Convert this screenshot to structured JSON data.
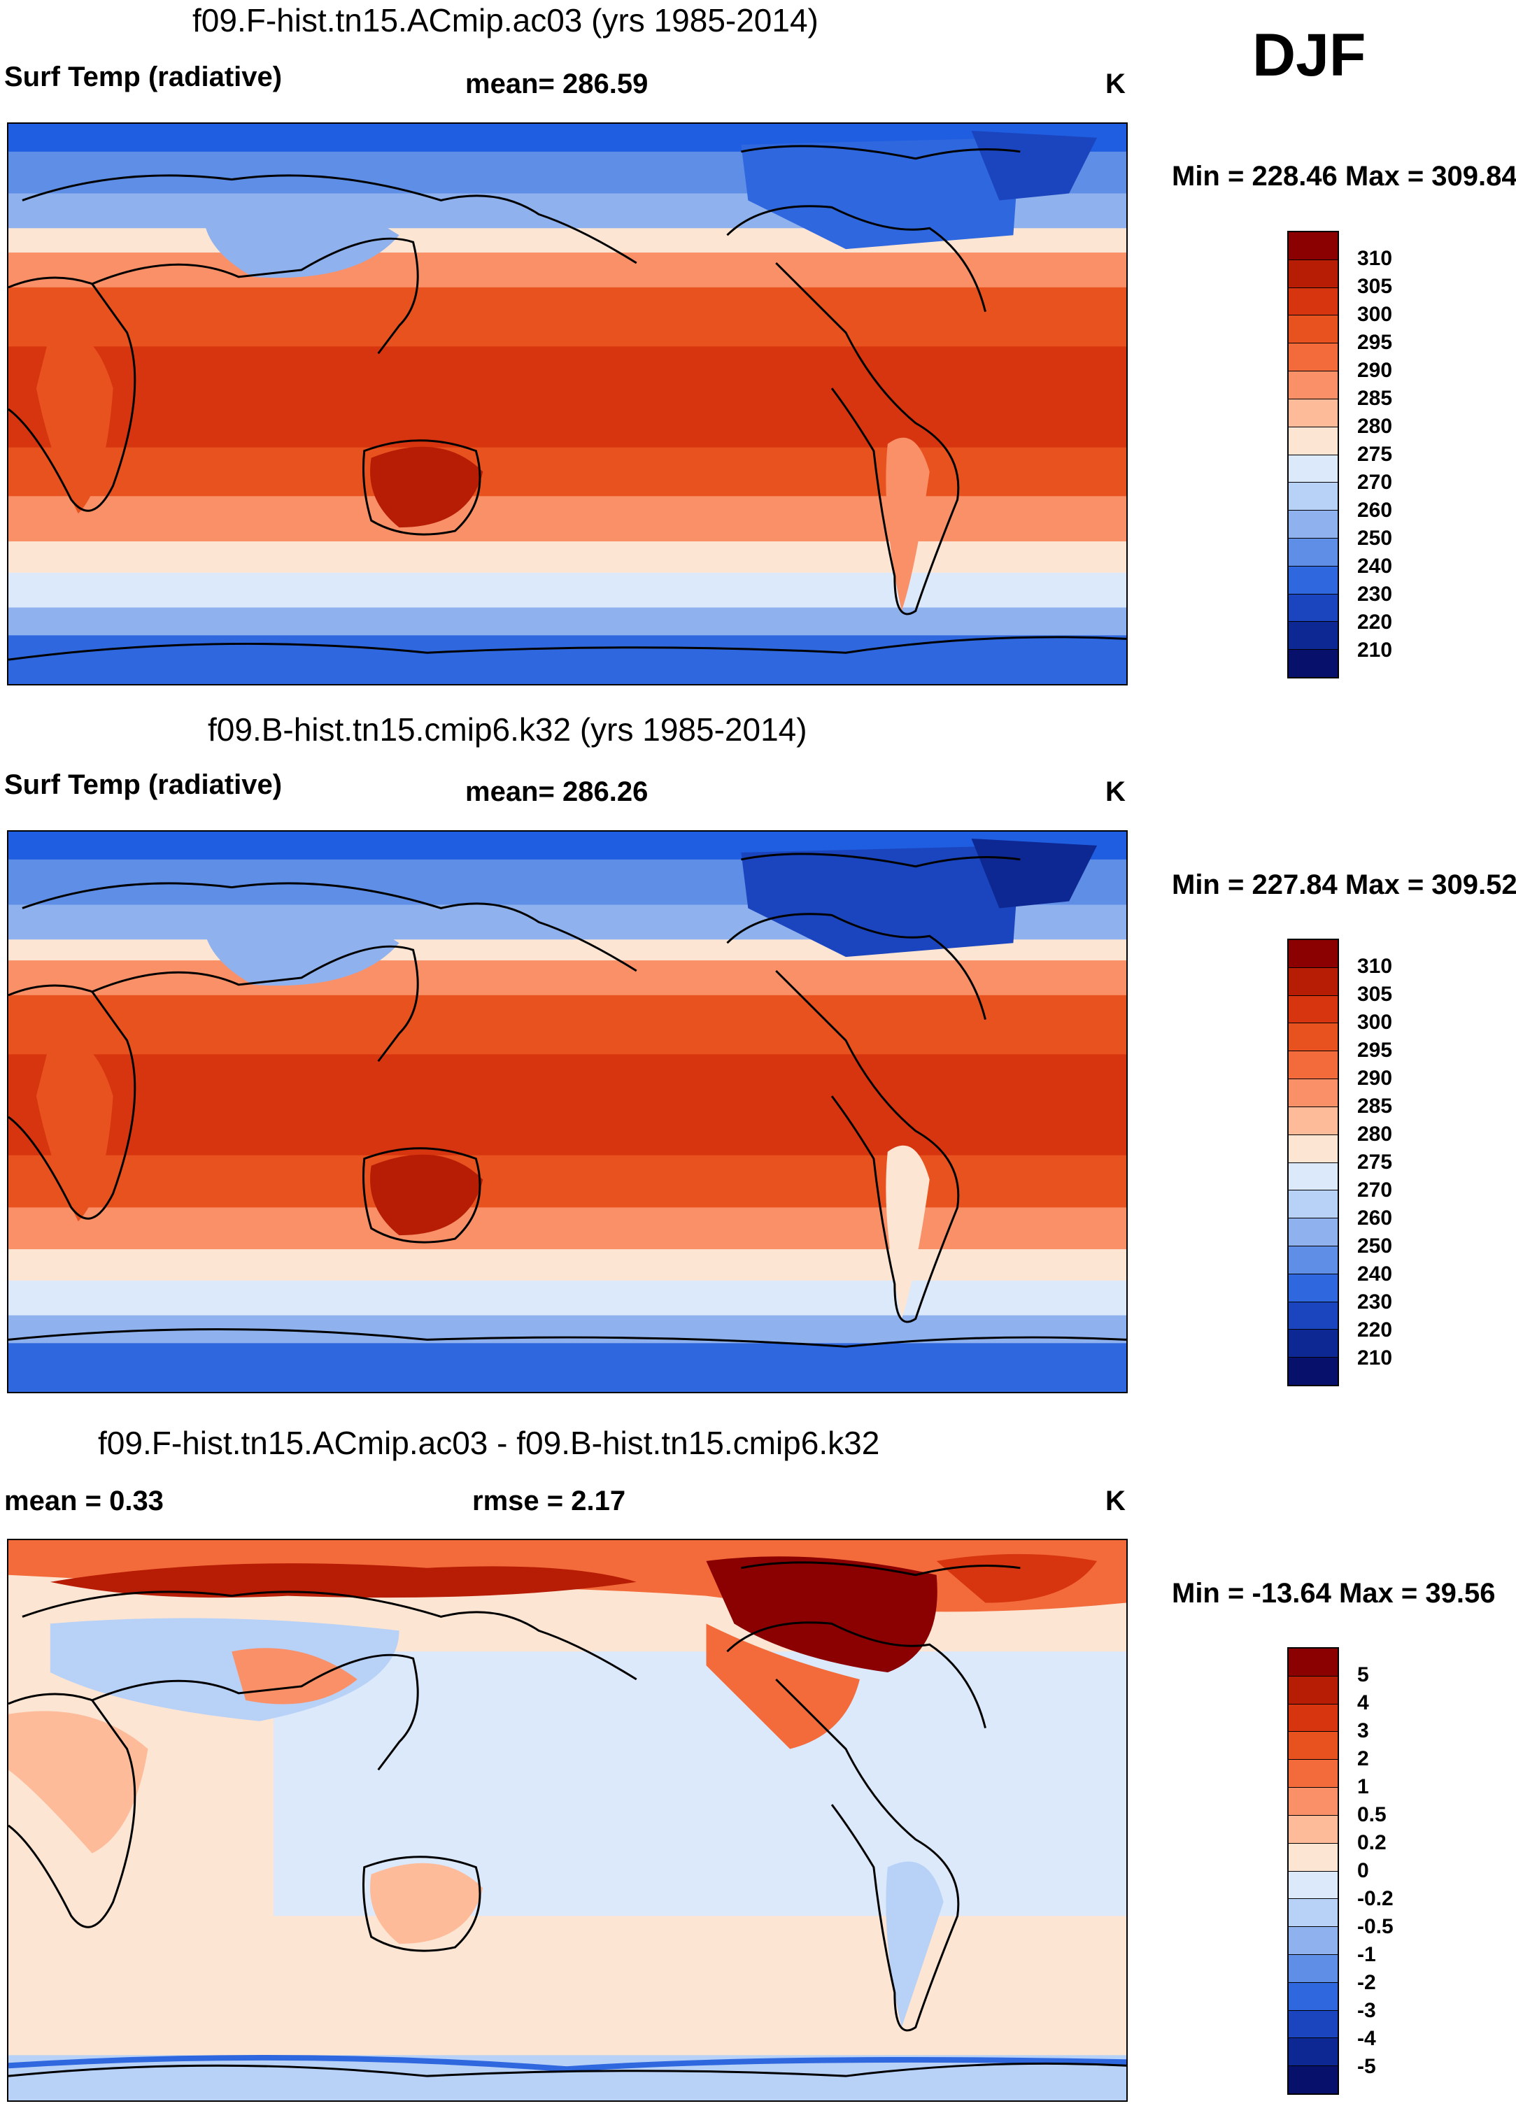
{
  "season": "DJF",
  "panels": [
    {
      "id": "p1",
      "title": "f09.F-hist.tn15.ACmip.ac03 (yrs 1985-2014)",
      "left_label": "Surf Temp (radiative)",
      "center_label": "mean= 286.59",
      "right_label": "K",
      "minmax": "Min = 228.46 Max = 309.84",
      "colorbar": {
        "labels": [
          "310",
          "305",
          "300",
          "295",
          "290",
          "285",
          "280",
          "275",
          "270",
          "260",
          "250",
          "240",
          "230",
          "220",
          "210"
        ],
        "colors": [
          "#8b0000",
          "#b71c05",
          "#d6350f",
          "#e8521e",
          "#f36b3a",
          "#fa9068",
          "#fdbb9a",
          "#fde5d3",
          "#dbe9fb",
          "#b8d1f7",
          "#8fb2ee",
          "#5e8ee6",
          "#2f67df",
          "#1b45bf",
          "#0e2893",
          "#07106a"
        ]
      }
    },
    {
      "id": "p2",
      "title": "f09.B-hist.tn15.cmip6.k32 (yrs 1985-2014)",
      "left_label": "Surf Temp (radiative)",
      "center_label": "mean= 286.26",
      "right_label": "K",
      "minmax": "Min = 227.84 Max = 309.52",
      "colorbar": {
        "labels": [
          "310",
          "305",
          "300",
          "295",
          "290",
          "285",
          "280",
          "275",
          "270",
          "260",
          "250",
          "240",
          "230",
          "220",
          "210"
        ],
        "colors": [
          "#8b0000",
          "#b71c05",
          "#d6350f",
          "#e8521e",
          "#f36b3a",
          "#fa9068",
          "#fdbb9a",
          "#fde5d3",
          "#dbe9fb",
          "#b8d1f7",
          "#8fb2ee",
          "#5e8ee6",
          "#2f67df",
          "#1b45bf",
          "#0e2893",
          "#07106a"
        ]
      }
    },
    {
      "id": "p3",
      "title": "f09.F-hist.tn15.ACmip.ac03 - f09.B-hist.tn15.cmip6.k32",
      "left_label": "mean =   0.33",
      "center_label": "rmse =   2.17",
      "right_label": "K",
      "minmax": "Min = -13.64 Max =  39.56",
      "colorbar": {
        "labels": [
          "5",
          "4",
          "3",
          "2",
          "1",
          "0.5",
          "0.2",
          "0",
          "-0.2",
          "-0.5",
          "-1",
          "-2",
          "-3",
          "-4",
          "-5"
        ],
        "colors": [
          "#8b0000",
          "#b71c05",
          "#d6350f",
          "#e8521e",
          "#f36b3a",
          "#fa9068",
          "#fdbb9a",
          "#fde5d3",
          "#dbe9fb",
          "#b8d1f7",
          "#8fb2ee",
          "#5e8ee6",
          "#2f67df",
          "#1b45bf",
          "#0e2893",
          "#07106a"
        ]
      }
    }
  ]
}
